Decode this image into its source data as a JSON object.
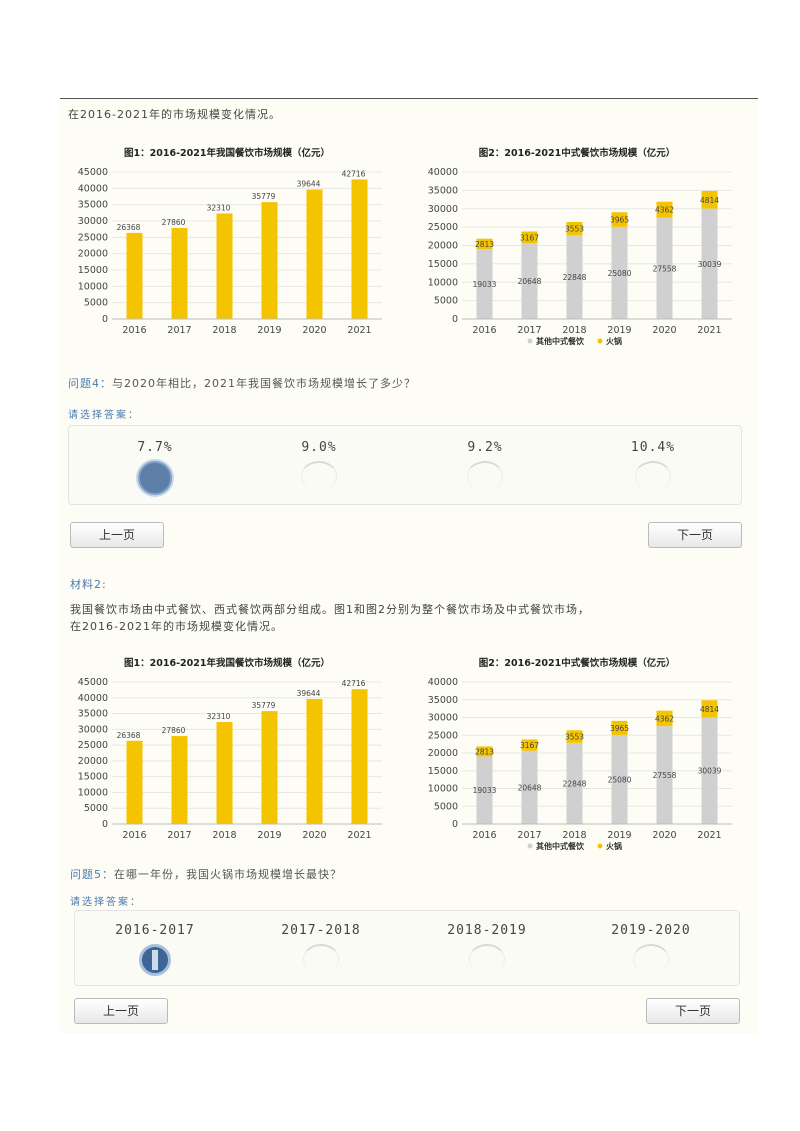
{
  "sections": [
    {
      "intro_lines": [
        "在2016-2021年的市场规模变化情况。"
      ],
      "question_label": "问题4：",
      "question": "与2020年相比，2021年我国餐饮市场规模增长了多少？",
      "choose_label": "请选择答案：",
      "options": [
        "7.7%",
        "9.0%",
        "9.2%",
        "10.4%"
      ],
      "selected_index": 0,
      "prev_label": "上一页",
      "next_label": "下一页"
    },
    {
      "material_label": "材料2:",
      "intro_lines": [
        "我国餐饮市场由中式餐饮、西式餐饮两部分组成。图1和图2分别为整个餐饮市场及中式餐饮市场，",
        "在2016-2021年的市场规模变化情况。"
      ],
      "question_label": "问题5：",
      "question": "在哪一年份，我国火锅市场规模增长最快？",
      "choose_label": "请选择答案：",
      "options": [
        "2016-2017",
        "2017-2018",
        "2018-2019",
        "2019-2020"
      ],
      "selected_index": 0,
      "prev_label": "上一页",
      "next_label": "下一页"
    }
  ],
  "colors": {
    "bar_yellow": "#f5c400",
    "bar_grey": "#d0d0d0",
    "radio_selected": "#5d7ea8",
    "question_label": "#4b7bb0"
  },
  "chart_data": [
    {
      "type": "bar",
      "title": "图1：2016-2021年我国餐饮市场规模（亿元）",
      "categories": [
        "2016",
        "2017",
        "2018",
        "2019",
        "2020",
        "2021"
      ],
      "values": [
        26368,
        27860,
        32310,
        35779,
        39644,
        42716
      ],
      "yticks": [
        0,
        5000,
        10000,
        15000,
        20000,
        25000,
        30000,
        35000,
        40000,
        45000
      ],
      "ylim": [
        0,
        45000
      ],
      "grid": true
    },
    {
      "type": "bar",
      "stacked": true,
      "title": "图2：2016-2021中式餐饮市场规模（亿元）",
      "categories": [
        "2016",
        "2017",
        "2018",
        "2019",
        "2020",
        "2021"
      ],
      "series": [
        {
          "name": "其他中式餐饮",
          "values": [
            19033,
            20648,
            22848,
            25080,
            27558,
            30039
          ]
        },
        {
          "name": "火锅",
          "values": [
            2813,
            3167,
            3553,
            3965,
            4362,
            4814
          ]
        }
      ],
      "yticks": [
        0,
        5000,
        10000,
        15000,
        20000,
        25000,
        30000,
        35000,
        40000
      ],
      "ylim": [
        0,
        40000
      ],
      "legend": "bottom",
      "grid": true
    }
  ]
}
